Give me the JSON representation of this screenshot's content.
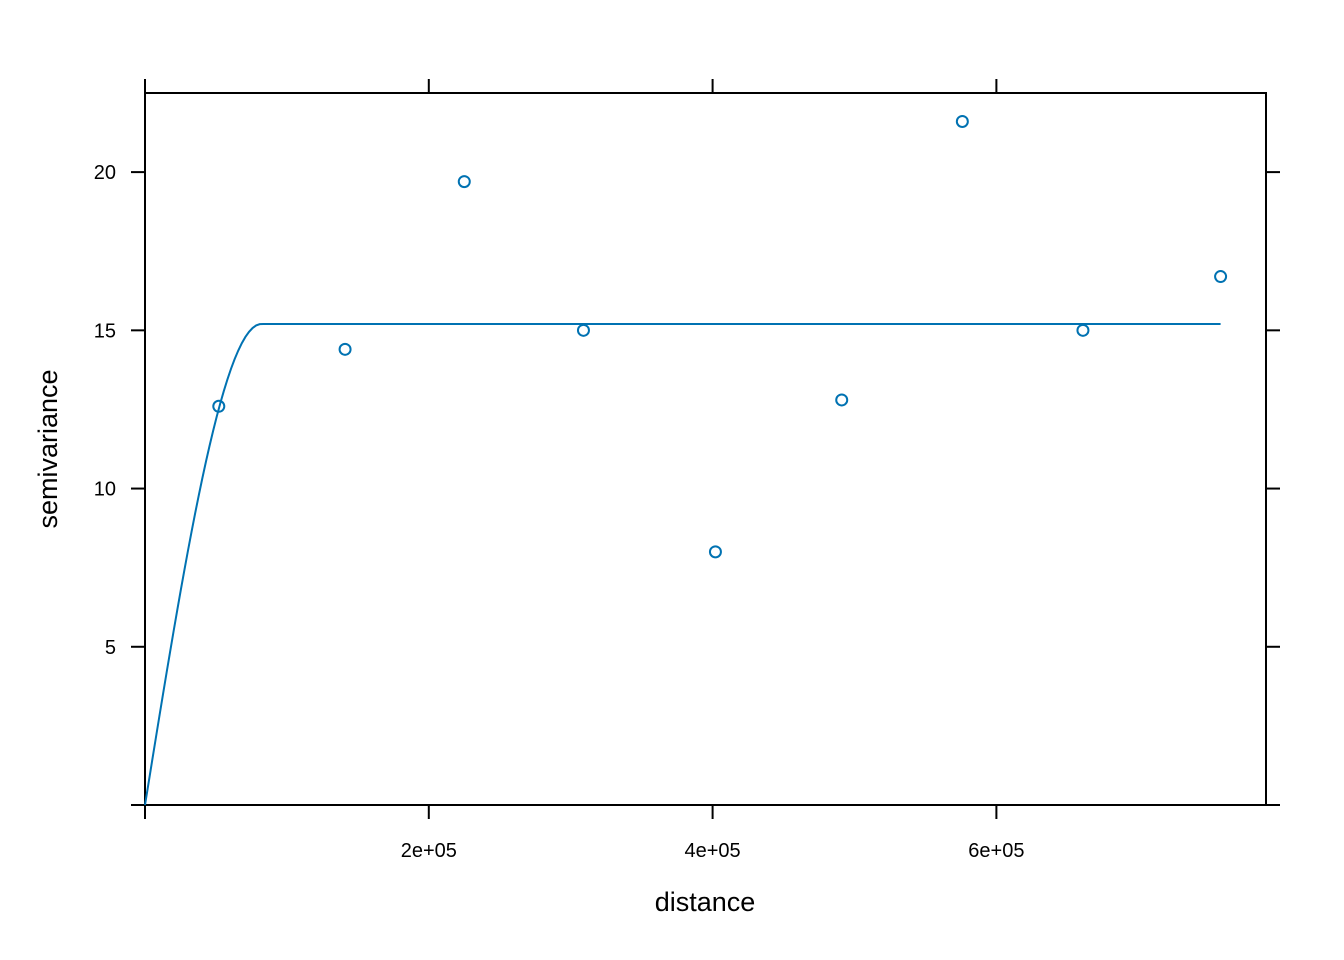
{
  "chart_data": {
    "type": "scatter",
    "title": "",
    "xlabel": "distance",
    "ylabel": "semivariance",
    "xlim": [
      0,
      790000
    ],
    "ylim": [
      0,
      22.5
    ],
    "x_ticks": [
      200000,
      400000,
      600000
    ],
    "x_tick_labels": [
      "2e+05",
      "4e+05",
      "6e+05"
    ],
    "y_ticks": [
      5,
      10,
      15,
      20
    ],
    "y_tick_labels": [
      "5",
      "10",
      "15",
      "20"
    ],
    "grid": false,
    "color": "#0072B2",
    "series": [
      {
        "type": "scatter",
        "x": [
          52000,
          141000,
          225000,
          309000,
          402000,
          491000,
          576000,
          661000,
          758000
        ],
        "y": [
          12.6,
          14.4,
          19.7,
          15.0,
          8.0,
          12.8,
          21.6,
          15.0,
          16.7
        ]
      },
      {
        "type": "line",
        "model": "spherical",
        "nugget": 0,
        "sill": 15.2,
        "range": 82000,
        "x_max": 758000
      }
    ]
  }
}
